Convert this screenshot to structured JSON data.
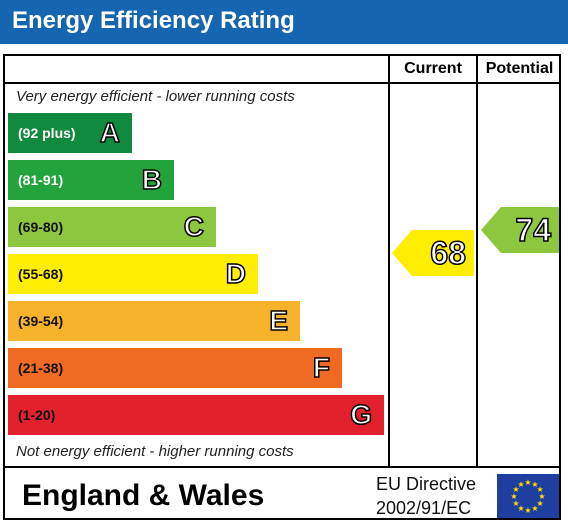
{
  "header": {
    "title": "Energy Efficiency Rating"
  },
  "columns": {
    "current": "Current",
    "potential": "Potential"
  },
  "notes": {
    "top": "Very energy efficient - lower running costs",
    "bottom": "Not energy efficient - higher running costs"
  },
  "bands": [
    {
      "range": "(92 plus)",
      "letter": "A",
      "color": "#0f8a3f",
      "text_color": "#ffffff"
    },
    {
      "range": "(81-91)",
      "letter": "B",
      "color": "#22a33b",
      "text_color": "#ffffff"
    },
    {
      "range": "(69-80)",
      "letter": "C",
      "color": "#8dc63f",
      "text_color": "#111111"
    },
    {
      "range": "(55-68)",
      "letter": "D",
      "color": "#ffee00",
      "text_color": "#111111"
    },
    {
      "range": "(39-54)",
      "letter": "E",
      "color": "#f7b22b",
      "text_color": "#111111"
    },
    {
      "range": "(21-38)",
      "letter": "F",
      "color": "#ef6b23",
      "text_color": "#111111"
    },
    {
      "range": "(1-20)",
      "letter": "G",
      "color": "#e3212d",
      "text_color": "#111111"
    }
  ],
  "ratings": {
    "current": {
      "value": "68",
      "color": "#ffee00"
    },
    "potential": {
      "value": "74",
      "color": "#8dc63f"
    }
  },
  "footer": {
    "country": "England & Wales",
    "directive_line1": "EU Directive",
    "directive_line2": "2002/91/EC",
    "flag_icon": "eu-flag-icon"
  }
}
